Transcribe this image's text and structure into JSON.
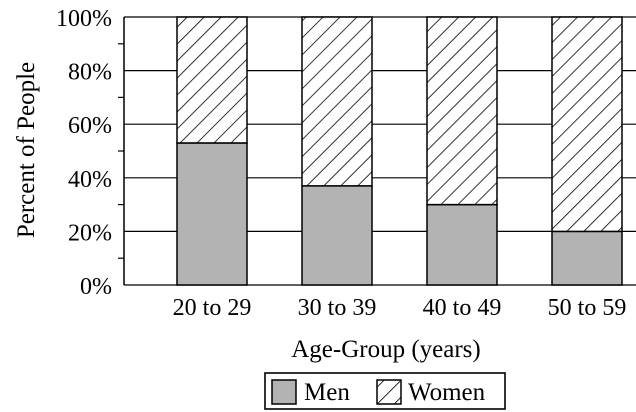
{
  "chart_data": {
    "type": "bar",
    "stacked": true,
    "percent": true,
    "categories": [
      "20 to 29",
      "30 to 39",
      "40 to 49",
      "50 to 59"
    ],
    "series": [
      {
        "name": "Men",
        "values": [
          53,
          37,
          30,
          20
        ],
        "color": "#b3b3b3",
        "pattern": "solid"
      },
      {
        "name": "Women",
        "values": [
          47,
          63,
          70,
          80
        ],
        "color": "#ffffff",
        "pattern": "hatch"
      }
    ],
    "xlabel": "Age-Group (years)",
    "ylabel": "Percent of People",
    "ylim": [
      0,
      100
    ],
    "yticks": [
      0,
      20,
      40,
      60,
      80,
      100
    ],
    "ytick_labels": [
      "0%",
      "20%",
      "40%",
      "60%",
      "80%",
      "100%"
    ],
    "grid": "horizontal",
    "legend": {
      "placement": "bottom-center",
      "entries": [
        "Men",
        "Women"
      ]
    }
  }
}
